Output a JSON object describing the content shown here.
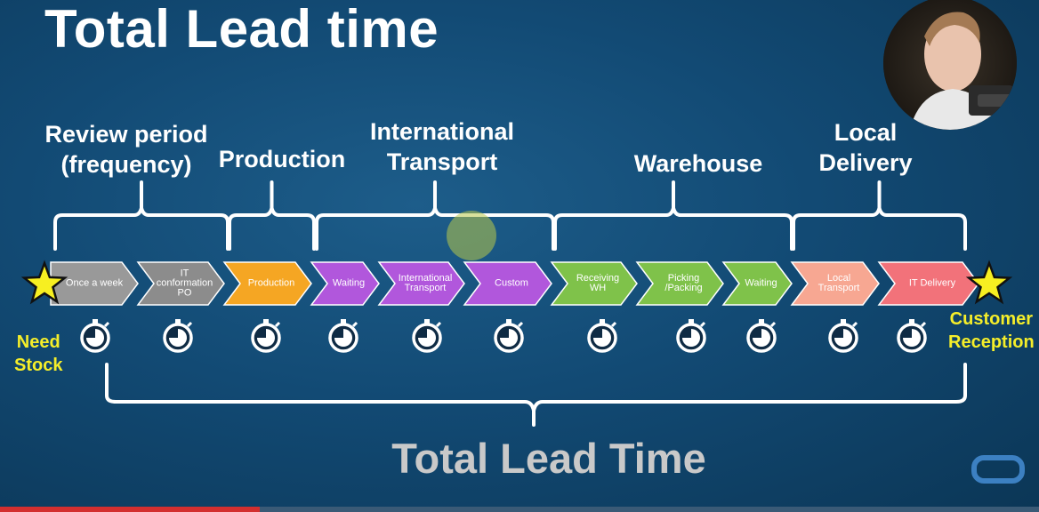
{
  "title": "Total Lead time",
  "stages": [
    {
      "label": "Review period\n(frequency)"
    },
    {
      "label": "Production"
    },
    {
      "label": "International\nTransport"
    },
    {
      "label": "Warehouse"
    },
    {
      "label": "Local\nDelivery"
    }
  ],
  "steps": [
    {
      "label": "Once a week",
      "color": "#999999"
    },
    {
      "label": "IT\nconformation\nPO",
      "color": "#8c8c8c"
    },
    {
      "label": "Production",
      "color": "#f5a623"
    },
    {
      "label": "Waiting",
      "color": "#b157dc"
    },
    {
      "label": "International\nTransport",
      "color": "#b157dc"
    },
    {
      "label": "Custom",
      "color": "#b157dc"
    },
    {
      "label": "Receiving\nWH",
      "color": "#7fc24a"
    },
    {
      "label": "Picking\n/Packing",
      "color": "#7fc24a"
    },
    {
      "label": "Waiting",
      "color": "#7fc24a"
    },
    {
      "label": "Local\nTransport",
      "color": "#f7a792"
    },
    {
      "label": "IT Delivery",
      "color": "#f2727a"
    }
  ],
  "start_label": "Need\nStock",
  "end_label": "Customer\nReception",
  "bottom_title": "Total Lead Time",
  "colors": {
    "star": "#f7ef21",
    "label_yellow": "#f5ee2a",
    "bottom_title": "#c9c9c9",
    "progress": "#d32f2f"
  },
  "icons": [
    "star-icon",
    "stopwatch-icon",
    "webcam-presenter",
    "player-logo-icon"
  ],
  "video_progress": 0.25
}
